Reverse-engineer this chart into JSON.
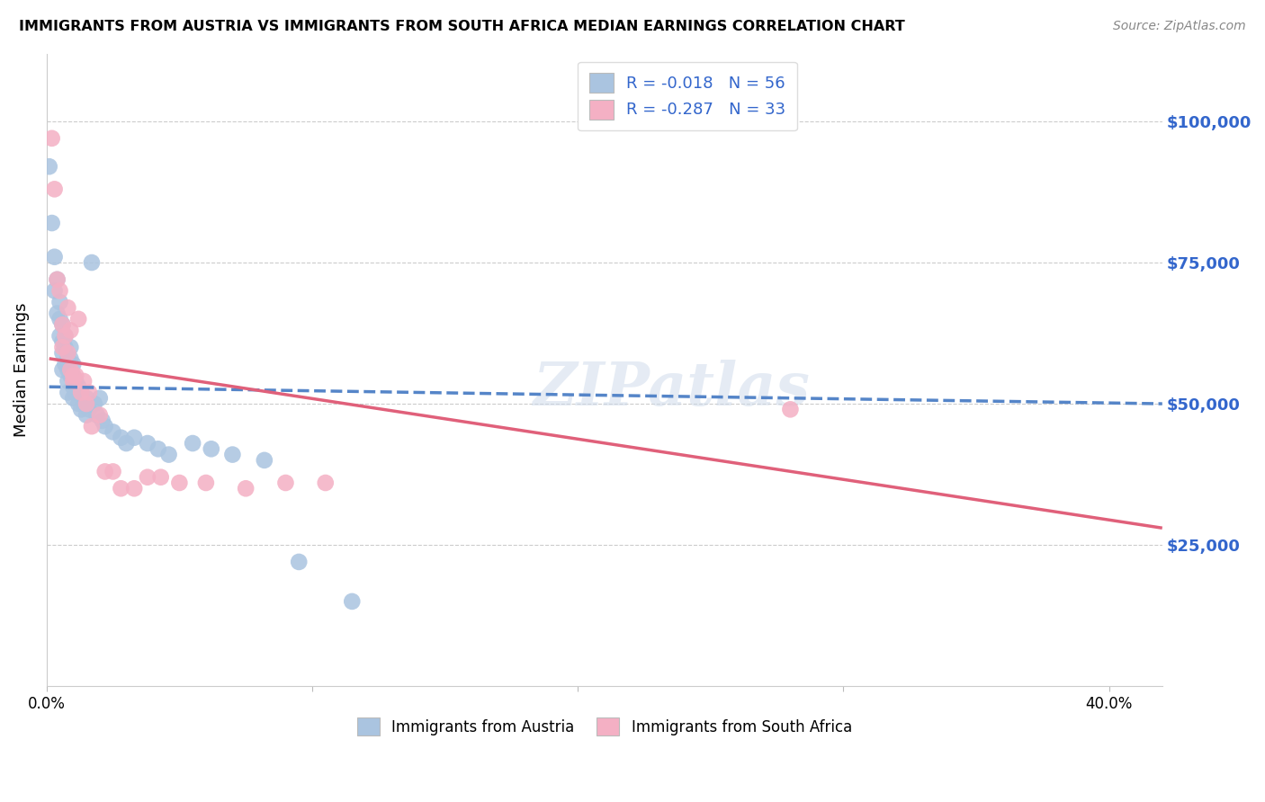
{
  "title": "IMMIGRANTS FROM AUSTRIA VS IMMIGRANTS FROM SOUTH AFRICA MEDIAN EARNINGS CORRELATION CHART",
  "source": "Source: ZipAtlas.com",
  "ylabel": "Median Earnings",
  "watermark": "ZIPatlas",
  "austria_R": "-0.018",
  "austria_N": "56",
  "sa_R": "-0.287",
  "sa_N": "33",
  "austria_color": "#aac4e0",
  "austria_line_color": "#5585c8",
  "sa_color": "#f4b0c4",
  "sa_line_color": "#e0607a",
  "ytick_color": "#3366cc",
  "ytick_labels": [
    "$25,000",
    "$50,000",
    "$75,000",
    "$100,000"
  ],
  "ytick_values": [
    25000,
    50000,
    75000,
    100000
  ],
  "ylim": [
    0,
    112000
  ],
  "xlim": [
    0.0,
    0.42
  ],
  "grid_color": "#cccccc",
  "austria_x": [
    0.001,
    0.002,
    0.003,
    0.003,
    0.004,
    0.004,
    0.005,
    0.005,
    0.005,
    0.006,
    0.006,
    0.006,
    0.006,
    0.007,
    0.007,
    0.007,
    0.008,
    0.008,
    0.008,
    0.008,
    0.009,
    0.009,
    0.009,
    0.01,
    0.01,
    0.01,
    0.01,
    0.011,
    0.011,
    0.012,
    0.012,
    0.013,
    0.013,
    0.014,
    0.015,
    0.015,
    0.016,
    0.017,
    0.018,
    0.019,
    0.02,
    0.021,
    0.022,
    0.025,
    0.028,
    0.03,
    0.033,
    0.038,
    0.042,
    0.046,
    0.055,
    0.062,
    0.07,
    0.082,
    0.095,
    0.115
  ],
  "austria_y": [
    92000,
    82000,
    76000,
    70000,
    72000,
    66000,
    68000,
    65000,
    62000,
    64000,
    61000,
    59000,
    56000,
    62000,
    60000,
    57000,
    58000,
    56000,
    54000,
    52000,
    60000,
    58000,
    55000,
    57000,
    55000,
    53000,
    51000,
    54000,
    52000,
    53000,
    50000,
    52000,
    49000,
    50000,
    51000,
    48000,
    49000,
    75000,
    50000,
    48000,
    51000,
    47000,
    46000,
    45000,
    44000,
    43000,
    44000,
    43000,
    42000,
    41000,
    43000,
    42000,
    41000,
    40000,
    22000,
    15000
  ],
  "sa_x": [
    0.002,
    0.003,
    0.004,
    0.005,
    0.006,
    0.006,
    0.007,
    0.008,
    0.008,
    0.009,
    0.009,
    0.01,
    0.01,
    0.011,
    0.012,
    0.013,
    0.014,
    0.015,
    0.016,
    0.017,
    0.02,
    0.022,
    0.025,
    0.028,
    0.033,
    0.038,
    0.043,
    0.05,
    0.06,
    0.075,
    0.09,
    0.105,
    0.28
  ],
  "sa_y": [
    97000,
    88000,
    72000,
    70000,
    64000,
    60000,
    62000,
    59000,
    67000,
    63000,
    56000,
    55000,
    54000,
    55000,
    65000,
    52000,
    54000,
    50000,
    52000,
    46000,
    48000,
    38000,
    38000,
    35000,
    35000,
    37000,
    37000,
    36000,
    36000,
    35000,
    36000,
    36000,
    49000
  ],
  "austria_line_x0": 0.001,
  "austria_line_x1": 0.42,
  "austria_line_y0": 53000,
  "austria_line_y1": 50000,
  "sa_line_x0": 0.001,
  "sa_line_x1": 0.42,
  "sa_line_y0": 58000,
  "sa_line_y1": 28000
}
